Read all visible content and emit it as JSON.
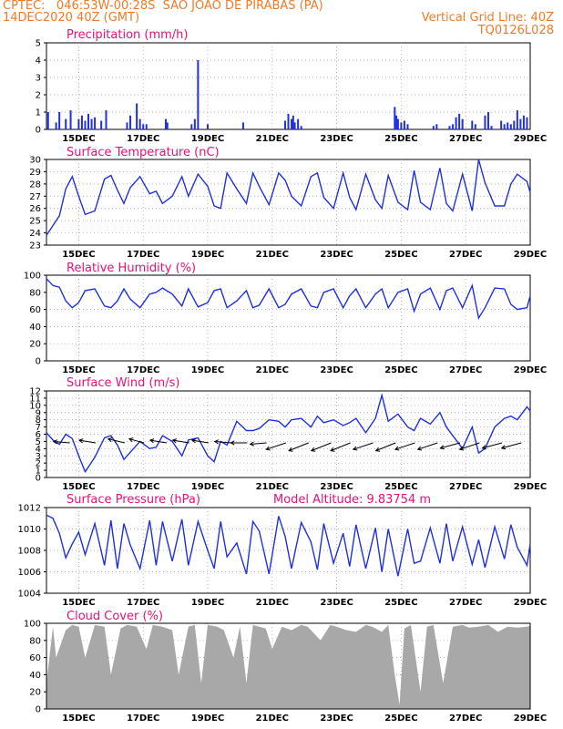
{
  "header": {
    "line1": "CPTEC:   046:53W-00:28S  SAO JOAO DE PIRABAS (PA)",
    "line2_left": "14DEC2020 40Z (GMT)",
    "line2_right": "Vertical Grid Line: 40Z",
    "line3_right": "TQ0126L028"
  },
  "colors": {
    "header": "#f07a28",
    "title": "#e8107a",
    "series": "#2030e0",
    "cloud": "#a8a8a8",
    "wind_arrow": "#000000",
    "grid": "#999999"
  },
  "x_axis": {
    "start_day": 14.0,
    "end_day": 29.0,
    "tick_days": [
      15,
      17,
      19,
      21,
      23,
      25,
      27,
      29
    ],
    "tick_labels": [
      "15DEC",
      "17DEC",
      "19DEC",
      "21DEC",
      "23DEC",
      "25DEC",
      "27DEC",
      "29DEC"
    ]
  },
  "chart_data": [
    {
      "id": "precip",
      "type": "bar",
      "title": "Precipitation (mm/h)",
      "ylim": [
        0,
        5
      ],
      "yticks": [
        0,
        1,
        2,
        3,
        4,
        5
      ],
      "x": [
        14.05,
        14.3,
        14.4,
        14.6,
        14.75,
        15.0,
        15.1,
        15.2,
        15.3,
        15.4,
        15.5,
        15.7,
        15.85,
        16.5,
        16.6,
        16.8,
        16.9,
        17.0,
        17.1,
        17.7,
        17.75,
        18.5,
        18.6,
        18.7,
        19.0,
        20.1,
        21.4,
        21.5,
        21.6,
        21.65,
        21.7,
        21.8,
        21.9,
        24.8,
        24.85,
        24.9,
        25.0,
        25.1,
        25.2,
        26.0,
        26.1,
        26.5,
        26.6,
        26.7,
        26.8,
        26.9,
        27.2,
        27.3,
        27.6,
        27.7,
        27.8,
        28.1,
        28.2,
        28.3,
        28.4,
        28.5,
        28.6,
        28.7,
        28.8,
        28.9
      ],
      "values": [
        1.0,
        0.4,
        1.0,
        0.6,
        1.1,
        0.6,
        0.8,
        0.5,
        0.9,
        0.6,
        0.7,
        0.5,
        1.1,
        0.4,
        0.8,
        1.5,
        0.6,
        0.3,
        0.3,
        0.6,
        0.4,
        0.3,
        0.6,
        4.0,
        0.3,
        0.4,
        0.5,
        0.9,
        0.6,
        0.8,
        0.4,
        0.6,
        0.2,
        1.3,
        0.8,
        0.6,
        0.4,
        0.5,
        0.3,
        0.2,
        0.3,
        0.2,
        0.3,
        0.7,
        0.9,
        0.6,
        0.5,
        0.3,
        0.8,
        1.0,
        0.2,
        0.5,
        0.3,
        0.4,
        0.3,
        0.5,
        1.1,
        0.6,
        0.8,
        0.7
      ]
    },
    {
      "id": "temp",
      "type": "line",
      "title": "Surface Temperature (nC)",
      "ylim": [
        23,
        30
      ],
      "yticks": [
        23,
        24,
        25,
        26,
        27,
        28,
        29,
        30
      ],
      "x": [
        14.0,
        14.2,
        14.4,
        14.6,
        14.8,
        15.0,
        15.2,
        15.5,
        15.8,
        16.0,
        16.2,
        16.4,
        16.6,
        16.9,
        17.2,
        17.4,
        17.6,
        17.9,
        18.2,
        18.4,
        18.7,
        19.0,
        19.2,
        19.4,
        19.6,
        19.9,
        20.2,
        20.4,
        20.6,
        20.9,
        21.2,
        21.4,
        21.6,
        21.9,
        22.2,
        22.4,
        22.6,
        22.9,
        23.2,
        23.4,
        23.6,
        23.9,
        24.2,
        24.4,
        24.6,
        24.9,
        25.2,
        25.4,
        25.6,
        25.9,
        26.2,
        26.4,
        26.6,
        26.9,
        27.2,
        27.4,
        27.6,
        27.9,
        28.2,
        28.4,
        28.6,
        28.9,
        29.0
      ],
      "values": [
        23.8,
        24.6,
        25.4,
        27.6,
        28.6,
        27.0,
        25.5,
        25.8,
        28.4,
        28.7,
        27.5,
        26.4,
        27.7,
        28.6,
        27.2,
        27.4,
        26.4,
        27.0,
        28.6,
        27.0,
        28.8,
        27.8,
        26.2,
        26.0,
        28.9,
        27.6,
        26.4,
        28.9,
        27.8,
        26.3,
        28.9,
        28.3,
        27.0,
        26.2,
        28.6,
        28.9,
        26.9,
        26.0,
        28.9,
        26.9,
        25.9,
        28.8,
        26.7,
        26.0,
        28.7,
        26.5,
        25.9,
        29.1,
        26.5,
        25.9,
        29.3,
        26.4,
        25.8,
        28.8,
        25.8,
        30.0,
        28.1,
        26.2,
        26.2,
        28.0,
        28.8,
        28.2,
        27.3
      ]
    },
    {
      "id": "rh",
      "type": "line",
      "title": "Relative Humidity (%)",
      "ylim": [
        0,
        100
      ],
      "yticks": [
        0,
        20,
        40,
        60,
        80,
        100
      ],
      "x": [
        14.0,
        14.2,
        14.4,
        14.6,
        14.8,
        15.0,
        15.2,
        15.5,
        15.8,
        16.0,
        16.2,
        16.4,
        16.6,
        16.9,
        17.2,
        17.4,
        17.6,
        17.9,
        18.2,
        18.4,
        18.7,
        19.0,
        19.2,
        19.4,
        19.6,
        19.9,
        20.2,
        20.4,
        20.6,
        20.9,
        21.2,
        21.4,
        21.6,
        21.9,
        22.2,
        22.4,
        22.6,
        22.9,
        23.2,
        23.4,
        23.6,
        23.9,
        24.2,
        24.4,
        24.6,
        24.9,
        25.2,
        25.4,
        25.6,
        25.9,
        26.2,
        26.4,
        26.6,
        26.9,
        27.2,
        27.4,
        27.6,
        27.9,
        28.2,
        28.4,
        28.6,
        28.9,
        29.0
      ],
      "values": [
        96,
        88,
        86,
        70,
        62,
        68,
        82,
        84,
        64,
        62,
        70,
        84,
        72,
        62,
        78,
        80,
        85,
        78,
        64,
        84,
        63,
        68,
        82,
        84,
        62,
        70,
        82,
        62,
        65,
        84,
        62,
        66,
        78,
        84,
        64,
        62,
        80,
        84,
        62,
        76,
        84,
        62,
        78,
        84,
        62,
        80,
        84,
        58,
        78,
        85,
        60,
        82,
        85,
        62,
        88,
        50,
        62,
        85,
        84,
        66,
        60,
        62,
        76
      ]
    },
    {
      "id": "wind",
      "type": "line",
      "title": "Surface Wind (m/s)",
      "ylim": [
        0,
        12
      ],
      "yticks": [
        0,
        1,
        2,
        3,
        4,
        5,
        6,
        7,
        8,
        9,
        10,
        11,
        12
      ],
      "x": [
        14.0,
        14.2,
        14.4,
        14.6,
        14.8,
        15.0,
        15.2,
        15.5,
        15.8,
        16.0,
        16.2,
        16.4,
        16.6,
        16.9,
        17.2,
        17.4,
        17.6,
        17.9,
        18.2,
        18.4,
        18.7,
        19.0,
        19.2,
        19.4,
        19.6,
        19.9,
        20.2,
        20.4,
        20.6,
        20.9,
        21.2,
        21.4,
        21.6,
        21.9,
        22.2,
        22.4,
        22.6,
        22.9,
        23.2,
        23.4,
        23.6,
        23.9,
        24.2,
        24.4,
        24.6,
        24.9,
        25.2,
        25.4,
        25.6,
        25.9,
        26.2,
        26.4,
        26.6,
        26.9,
        27.2,
        27.4,
        27.6,
        27.9,
        28.2,
        28.4,
        28.6,
        28.9,
        29.0
      ],
      "values": [
        6.2,
        5.2,
        4.6,
        6.0,
        5.4,
        3.0,
        0.8,
        2.8,
        5.5,
        5.8,
        4.5,
        2.5,
        3.5,
        5.0,
        4.0,
        4.2,
        5.8,
        5.0,
        3.0,
        5.2,
        5.5,
        3.0,
        2.2,
        5.0,
        4.5,
        7.8,
        6.5,
        6.5,
        6.8,
        8.0,
        7.8,
        7.0,
        8.0,
        8.2,
        7.0,
        8.5,
        7.6,
        8.0,
        7.2,
        7.6,
        8.2,
        6.2,
        8.2,
        11.4,
        7.8,
        8.8,
        7.0,
        6.5,
        8.2,
        7.4,
        9.0,
        7.0,
        5.8,
        4.0,
        7.0,
        3.4,
        4.0,
        7.0,
        8.2,
        8.5,
        8.0,
        9.8,
        9.2
      ],
      "arrows": {
        "x": [
          14.5,
          15.3,
          16.2,
          16.8,
          17.5,
          18.2,
          18.8,
          19.5,
          20.0,
          20.6,
          21.2,
          21.9,
          22.6,
          23.2,
          23.9,
          24.6,
          25.2,
          25.9,
          26.6,
          27.2,
          27.9,
          28.5
        ],
        "u": [
          -1.0,
          -1.0,
          -1.0,
          -0.9,
          -1.0,
          -1.0,
          -1.0,
          -1.0,
          -1.0,
          -1.0,
          -1.2,
          -1.2,
          -1.2,
          -1.2,
          -1.2,
          -1.2,
          -1.2,
          -1.2,
          -1.2,
          -1.2,
          -1.2,
          -1.2
        ],
        "v": [
          0.1,
          0.2,
          0.3,
          0.3,
          0.2,
          0.2,
          0.2,
          0.1,
          0.0,
          -0.1,
          -0.5,
          -0.6,
          -0.6,
          -0.6,
          -0.5,
          -0.6,
          -0.5,
          -0.5,
          -0.4,
          -0.5,
          -0.4,
          -0.4
        ]
      }
    },
    {
      "id": "pres",
      "type": "line",
      "title": "Surface Pressure (hPa)",
      "annotation": "Model Altitude: 9.83754 m",
      "ylim": [
        1004,
        1012
      ],
      "yticks": [
        1004,
        1006,
        1008,
        1010,
        1012
      ],
      "x": [
        14.0,
        14.2,
        14.4,
        14.6,
        14.8,
        15.0,
        15.2,
        15.5,
        15.8,
        16.0,
        16.2,
        16.4,
        16.6,
        16.9,
        17.2,
        17.4,
        17.6,
        17.9,
        18.2,
        18.4,
        18.7,
        19.0,
        19.2,
        19.4,
        19.6,
        19.9,
        20.2,
        20.4,
        20.6,
        20.9,
        21.2,
        21.4,
        21.6,
        21.9,
        22.2,
        22.4,
        22.6,
        22.9,
        23.2,
        23.4,
        23.6,
        23.9,
        24.2,
        24.4,
        24.6,
        24.9,
        25.2,
        25.4,
        25.6,
        25.9,
        26.2,
        26.4,
        26.6,
        26.9,
        27.2,
        27.4,
        27.6,
        27.9,
        28.2,
        28.4,
        28.6,
        28.9,
        29.0
      ],
      "values": [
        1011.3,
        1011.0,
        1009.6,
        1007.3,
        1008.6,
        1009.7,
        1007.6,
        1010.5,
        1006.6,
        1010.8,
        1006.3,
        1010.5,
        1008.5,
        1006.3,
        1010.8,
        1006.6,
        1010.7,
        1007.0,
        1010.9,
        1006.6,
        1010.7,
        1008.0,
        1006.3,
        1010.7,
        1007.4,
        1008.7,
        1005.8,
        1010.7,
        1009.8,
        1005.8,
        1011.2,
        1009.3,
        1006.3,
        1010.6,
        1008.8,
        1006.2,
        1010.5,
        1006.8,
        1009.6,
        1006.5,
        1010.4,
        1006.3,
        1010.1,
        1006.0,
        1010.0,
        1005.6,
        1010.0,
        1006.8,
        1007.0,
        1010.1,
        1006.8,
        1010.5,
        1007.0,
        1010.2,
        1006.7,
        1009.0,
        1006.4,
        1010.2,
        1007.2,
        1010.4,
        1008.3,
        1006.6,
        1008.6
      ]
    },
    {
      "id": "cloud",
      "type": "area",
      "title": "Cloud Cover (%)",
      "ylim": [
        0,
        100
      ],
      "yticks": [
        0,
        20,
        40,
        60,
        80,
        100
      ],
      "x": [
        14.0,
        14.2,
        14.3,
        14.6,
        14.8,
        15.0,
        15.2,
        15.5,
        15.8,
        16.0,
        16.3,
        16.5,
        16.8,
        17.1,
        17.3,
        17.6,
        17.9,
        18.1,
        18.4,
        18.6,
        18.8,
        19.0,
        19.3,
        19.5,
        19.8,
        20.0,
        20.2,
        20.4,
        20.8,
        21.0,
        21.3,
        21.6,
        21.9,
        22.1,
        22.5,
        22.8,
        23.0,
        23.3,
        23.6,
        23.9,
        24.1,
        24.4,
        24.6,
        24.8,
        24.95,
        25.1,
        25.3,
        25.6,
        25.8,
        26.0,
        26.3,
        26.6,
        26.9,
        27.1,
        27.4,
        27.7,
        28.0,
        28.3,
        28.6,
        28.9,
        29.0
      ],
      "values": [
        30,
        96,
        60,
        92,
        98,
        96,
        60,
        98,
        96,
        40,
        94,
        98,
        96,
        70,
        98,
        96,
        92,
        40,
        96,
        98,
        30,
        98,
        96,
        92,
        60,
        96,
        30,
        98,
        94,
        70,
        96,
        92,
        98,
        96,
        80,
        98,
        96,
        92,
        90,
        98,
        96,
        90,
        98,
        40,
        5,
        94,
        98,
        20,
        96,
        98,
        30,
        96,
        98,
        95,
        96,
        98,
        90,
        96,
        95,
        96,
        97
      ]
    }
  ]
}
